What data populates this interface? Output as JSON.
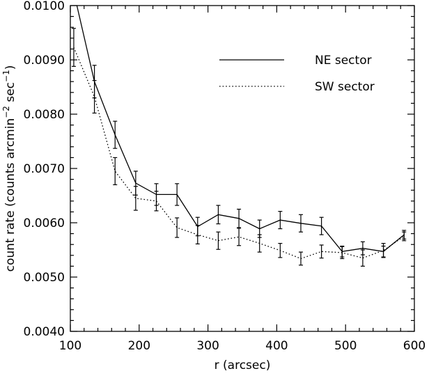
{
  "chart_data": {
    "type": "line",
    "xlabel": "r (arcsec)",
    "ylabel_parts": [
      "count rate (counts arcmin",
      "−2",
      " sec",
      "−1",
      ")"
    ],
    "xlim": [
      100,
      600
    ],
    "ylim": [
      0.004,
      0.01
    ],
    "xticks": [
      100,
      200,
      300,
      400,
      500,
      600
    ],
    "xtick_labels": [
      "100",
      "200",
      "300",
      "400",
      "500",
      "600"
    ],
    "yticks": [
      0.004,
      0.005,
      0.006,
      0.007,
      0.008,
      0.009,
      0.01
    ],
    "ytick_labels": [
      "0.0040",
      "0.0050",
      "0.0060",
      "0.0070",
      "0.0080",
      "0.0090",
      "0.0100"
    ],
    "legend_position": "top-right",
    "series": [
      {
        "name": "NE sector",
        "style": "solid",
        "x": [
          105,
          135,
          165,
          195,
          225,
          255,
          285,
          315,
          345,
          375,
          405,
          435,
          465,
          495,
          525,
          555,
          585
        ],
        "y": [
          0.01025,
          0.0086,
          0.00762,
          0.00673,
          0.00652,
          0.00652,
          0.00593,
          0.00615,
          0.00608,
          0.00589,
          0.00605,
          0.00599,
          0.00594,
          0.00547,
          0.00553,
          0.00547,
          0.00578
        ],
        "err": [
          0.0,
          0.0003,
          0.00025,
          0.00022,
          0.0002,
          0.0002,
          0.00017,
          0.00017,
          0.00017,
          0.00016,
          0.00016,
          0.00016,
          0.00016,
          0.0001,
          0.00012,
          0.0001,
          8e-05
        ]
      },
      {
        "name": "SW sector",
        "style": "dotted",
        "x": [
          105,
          135,
          165,
          195,
          225,
          255,
          285,
          315,
          345,
          375,
          405,
          435,
          465,
          495,
          525,
          555,
          585
        ],
        "y": [
          0.00923,
          0.00832,
          0.00695,
          0.00645,
          0.0064,
          0.00591,
          0.00578,
          0.00567,
          0.00574,
          0.00562,
          0.00549,
          0.00534,
          0.00547,
          0.00545,
          0.00535,
          0.00549,
          0.00575
        ],
        "err": [
          0.00035,
          0.0003,
          0.00025,
          0.00022,
          0.00018,
          0.00018,
          0.00017,
          0.00016,
          0.00016,
          0.00016,
          0.00013,
          0.00012,
          0.00012,
          0.00011,
          0.00015,
          0.00013,
          8e-05
        ]
      }
    ]
  }
}
